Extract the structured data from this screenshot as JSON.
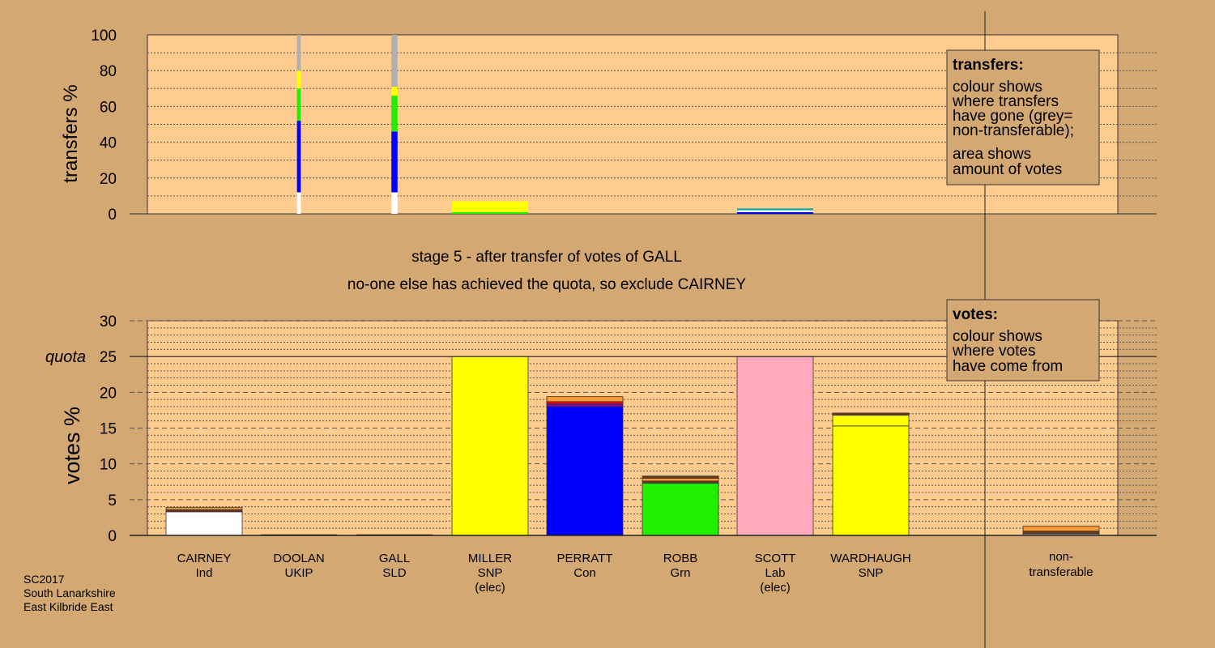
{
  "colors": {
    "background": "#d4a872",
    "plot": "#ffcc8f",
    "white": "#ffffff",
    "yellow": "#ffff00",
    "blue": "#0000ff",
    "green": "#22ee00",
    "pink": "#ffaabb",
    "grey": "#b0b0b0",
    "orange": "#ff9933",
    "brown": "#6b3a1e",
    "red": "#ff0000",
    "purple": "#8800aa",
    "teal": "#00aaaa"
  },
  "stage": {
    "line1": "stage 5 - after transfer of votes of GALL",
    "line2": "no-one else has achieved the quota, so exclude CAIRNEY"
  },
  "footer": {
    "line1": "SC2017",
    "line2": "South Lanarkshire",
    "line3": "East Kilbride East"
  },
  "legend_transfers": {
    "title": "transfers:",
    "line1": "colour shows",
    "line2": "where transfers",
    "line3": "have gone (grey=",
    "line4": "non-transferable);",
    "line5": "area shows",
    "line6": "amount of votes"
  },
  "legend_votes": {
    "title": "votes:",
    "line1": "colour shows",
    "line2": "where votes",
    "line3": "have come from"
  },
  "chart_data": [
    {
      "type": "bar",
      "ylabel": "transfers %",
      "ylim": [
        0,
        100
      ],
      "yticks": [
        0,
        20,
        40,
        60,
        80,
        100
      ],
      "columns": [
        {
          "candidate": "CAIRNEY",
          "width": 0,
          "segments": []
        },
        {
          "candidate": "DOOLAN",
          "width": 0.05,
          "segments": [
            {
              "color": "white",
              "from": 0,
              "to": 12
            },
            {
              "color": "blue",
              "from": 12,
              "to": 52
            },
            {
              "color": "green",
              "from": 52,
              "to": 70
            },
            {
              "color": "yellow",
              "from": 70,
              "to": 80
            },
            {
              "color": "grey",
              "from": 80,
              "to": 100
            }
          ]
        },
        {
          "candidate": "GALL",
          "width": 0.08,
          "segments": [
            {
              "color": "white",
              "from": 0,
              "to": 12
            },
            {
              "color": "blue",
              "from": 12,
              "to": 46
            },
            {
              "color": "green",
              "from": 46,
              "to": 66
            },
            {
              "color": "yellow",
              "from": 66,
              "to": 71
            },
            {
              "color": "grey",
              "from": 71,
              "to": 100
            }
          ]
        },
        {
          "candidate": "MILLER",
          "width": 1.0,
          "segments": [
            {
              "color": "green",
              "from": 0,
              "to": 1
            },
            {
              "color": "yellow",
              "from": 1,
              "to": 7
            }
          ]
        },
        {
          "candidate": "PERRATT",
          "width": 0,
          "segments": []
        },
        {
          "candidate": "ROBB",
          "width": 0,
          "segments": []
        },
        {
          "candidate": "SCOTT",
          "width": 1.0,
          "segments": [
            {
              "color": "blue",
              "from": 0,
              "to": 1
            },
            {
              "color": "white",
              "from": 1,
              "to": 2
            },
            {
              "color": "teal",
              "from": 2,
              "to": 3
            }
          ]
        },
        {
          "candidate": "WARDHAUGH",
          "width": 0,
          "segments": []
        }
      ]
    },
    {
      "type": "bar",
      "ylabel": "votes %",
      "ylim": [
        0,
        30
      ],
      "yticks": [
        0,
        5,
        10,
        15,
        20,
        25,
        30
      ],
      "quota": 25,
      "quota_label": "quota",
      "categories": [
        {
          "name": "CAIRNEY",
          "party": "Ind",
          "note": ""
        },
        {
          "name": "DOOLAN",
          "party": "UKIP",
          "note": ""
        },
        {
          "name": "GALL",
          "party": "SLD",
          "note": ""
        },
        {
          "name": "MILLER",
          "party": "SNP",
          "note": "(elec)"
        },
        {
          "name": "PERRATT",
          "party": "Con",
          "note": ""
        },
        {
          "name": "ROBB",
          "party": "Grn",
          "note": ""
        },
        {
          "name": "SCOTT",
          "party": "Lab",
          "note": "(elec)"
        },
        {
          "name": "WARDHAUGH",
          "party": "SNP",
          "note": ""
        }
      ],
      "nontransferable": {
        "line1": "non-",
        "line2": "transferable"
      },
      "stacks": [
        [
          {
            "color": "white",
            "value": 3.3
          },
          {
            "color": "brown",
            "value": 0.3
          },
          {
            "color": "orange",
            "value": 0.3
          }
        ],
        [
          {
            "color": "orange",
            "value": 0.1
          }
        ],
        [
          {
            "color": "orange",
            "value": 0.1
          }
        ],
        [
          {
            "color": "yellow",
            "value": 25.0
          }
        ],
        [
          {
            "color": "blue",
            "value": 18.0
          },
          {
            "color": "purple",
            "value": 0.4
          },
          {
            "color": "red",
            "value": 0.3
          },
          {
            "color": "orange",
            "value": 0.7
          }
        ],
        [
          {
            "color": "green",
            "value": 7.3
          },
          {
            "color": "brown",
            "value": 0.3
          },
          {
            "color": "orange",
            "value": 0.4
          },
          {
            "color": "brown",
            "value": 0.3
          }
        ],
        [
          {
            "color": "pink",
            "value": 25.0
          }
        ],
        [
          {
            "color": "yellow",
            "value": 15.3
          },
          {
            "color": "yellow",
            "value": 1.5
          },
          {
            "color": "brown",
            "value": 0.3
          }
        ]
      ],
      "nontransferable_stack": [
        {
          "color": "white",
          "value": 0.2
        },
        {
          "color": "brown",
          "value": 0.4
        },
        {
          "color": "orange",
          "value": 0.7
        }
      ]
    }
  ]
}
